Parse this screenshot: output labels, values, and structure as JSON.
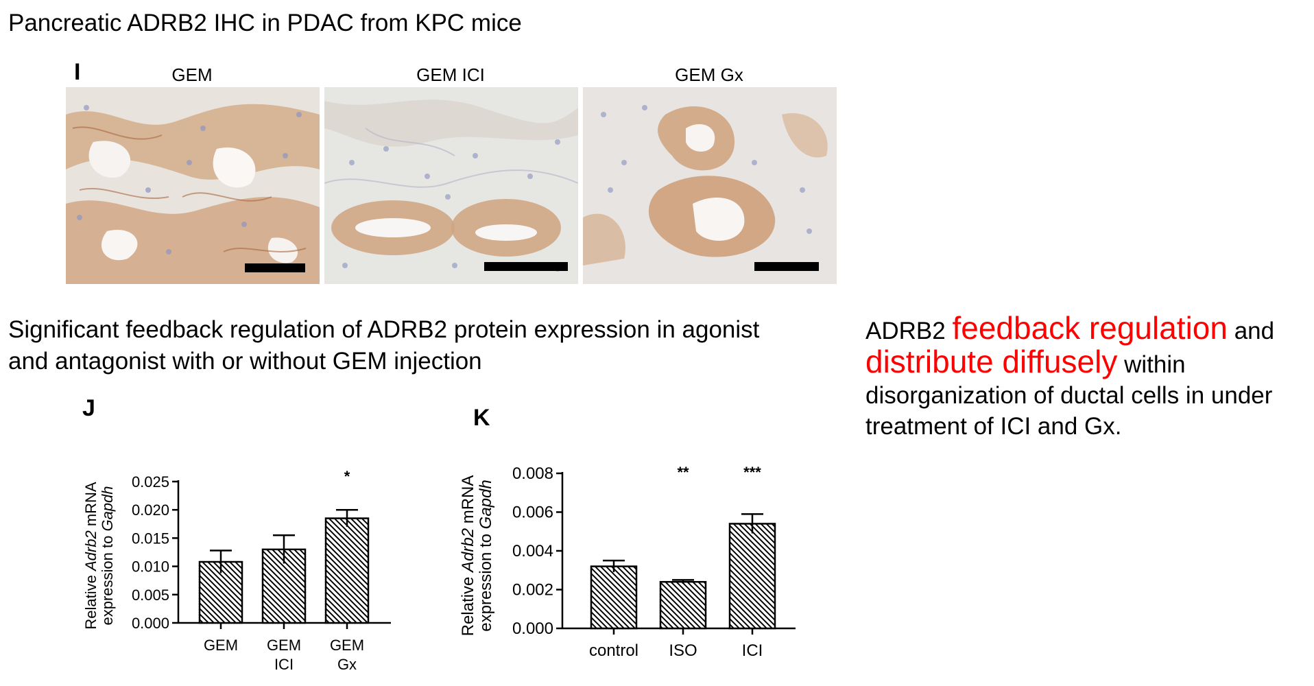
{
  "header": {
    "title": "Pancreatic ADRB2 IHC in PDAC from KPC mice",
    "panel_i": "I"
  },
  "ihc_images": [
    {
      "label": "GEM"
    },
    {
      "label": "GEM ICI"
    },
    {
      "label": "GEM Gx"
    }
  ],
  "description": {
    "line1": "Significant feedback regulation of ADRB2 protein expression in agonist",
    "line2": "and antagonist with or without GEM injection"
  },
  "note": {
    "p1": "ADRB2",
    "h1": "feedback regulation",
    "p2": "and",
    "h2": "distribute diffusely",
    "p3": "within disorganization of ductal cells in under treatment of ICI and Gx.",
    "highlight_color": "#ff0000"
  },
  "chart_data": [
    {
      "panel": "J",
      "type": "bar",
      "categories": [
        "GEM",
        "GEM\nICI",
        "GEM\nGx"
      ],
      "values": [
        0.0108,
        0.013,
        0.0185
      ],
      "errors": [
        0.002,
        0.0025,
        0.0015
      ],
      "significance": [
        "",
        "",
        "*"
      ],
      "ylabel_prefix": "Relative ",
      "ylabel_italic": "Adrb2",
      "ylabel_suffix": " mRNA",
      "ylabel2_prefix": "expression to ",
      "ylabel2_italic": "Gapdh",
      "ylim": [
        0,
        0.025
      ],
      "yticks": [
        "0.000",
        "0.005",
        "0.010",
        "0.015",
        "0.020",
        "0.025"
      ],
      "ytick_values": [
        0,
        0.005,
        0.01,
        0.015,
        0.02,
        0.025
      ],
      "bar_fill": "diagonal-hatch",
      "grid": false
    },
    {
      "panel": "K",
      "type": "bar",
      "categories": [
        "control",
        "ISO",
        "ICI"
      ],
      "values": [
        0.0032,
        0.0024,
        0.0054
      ],
      "errors": [
        0.0003,
        0.0001,
        0.0005
      ],
      "significance": [
        "",
        "**",
        "***"
      ],
      "ylabel_prefix": "Relative ",
      "ylabel_italic": "Adrb2",
      "ylabel_suffix": " mRNA",
      "ylabel2_prefix": "expression to ",
      "ylabel2_italic": "Gapdh",
      "ylim": [
        0,
        0.008
      ],
      "yticks": [
        "0.000",
        "0.002",
        "0.004",
        "0.006",
        "0.008"
      ],
      "ytick_values": [
        0,
        0.002,
        0.004,
        0.006,
        0.008
      ],
      "bar_fill": "diagonal-hatch",
      "grid": false
    }
  ]
}
